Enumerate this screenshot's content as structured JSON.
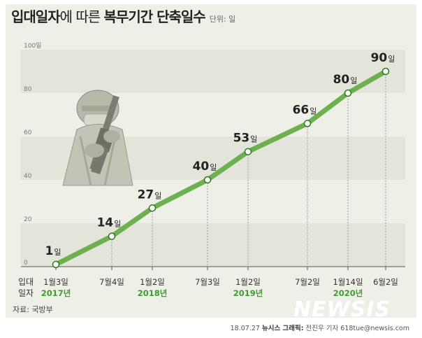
{
  "title": {
    "part1_bold": "입대일자",
    "part2": "에 따른 ",
    "part3_bold": "복무기간 단축일수",
    "unit": "단위: 일"
  },
  "source": "자료: 국방부",
  "credit": {
    "date": "18.07.27",
    "org": "뉴시스 그래픽:",
    "author": "전진우 기자 618tue@newsis.com"
  },
  "watermark": "NEWSIS",
  "colors": {
    "line": "#6db04f",
    "year": "#3aa02a",
    "background": "#eeefe6"
  },
  "chart_data": {
    "type": "line",
    "ylim": [
      0,
      100
    ],
    "y_ticks": [
      "100일",
      "80",
      "60",
      "40",
      "20",
      "0"
    ],
    "x_axis_label": "입대\n일자",
    "points": [
      {
        "x_label": "1월3일",
        "value": 1,
        "value_label": "1",
        "year": "2017년"
      },
      {
        "x_label": "7월4일",
        "value": 14,
        "value_label": "14",
        "year": ""
      },
      {
        "x_label": "1월2일",
        "value": 27,
        "value_label": "27",
        "year": "2018년"
      },
      {
        "x_label": "7월3일",
        "value": 40,
        "value_label": "40",
        "year": ""
      },
      {
        "x_label": "1월2일",
        "value": 53,
        "value_label": "53",
        "year": "2019년"
      },
      {
        "x_label": "7월2일",
        "value": 66,
        "value_label": "66",
        "year": ""
      },
      {
        "x_label": "1월14일",
        "value": 80,
        "value_label": "80",
        "year": "2020년"
      },
      {
        "x_label": "6월2일",
        "value": 90,
        "value_label": "90",
        "year": ""
      }
    ],
    "value_suffix": "일",
    "grid": true
  }
}
